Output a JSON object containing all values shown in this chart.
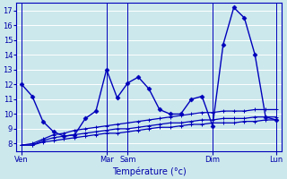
{
  "bg_color": "#cce8ec",
  "grid_color": "#ffffff",
  "line_color": "#0000bb",
  "xlabel": "Température (°c)",
  "xlabel_color": "#0000aa",
  "tick_color": "#0000aa",
  "ylim": [
    7.5,
    17.5
  ],
  "yticks": [
    8,
    9,
    10,
    11,
    12,
    13,
    14,
    15,
    16,
    17
  ],
  "n_points": 25,
  "x_day_ticks": [
    0,
    8,
    10,
    18,
    24
  ],
  "x_day_labels": [
    "Ven",
    "Mar",
    "Sam",
    "Dim",
    "Lun"
  ],
  "series_smooth_1": [
    7.9,
    7.9,
    8.1,
    8.2,
    8.3,
    8.4,
    8.5,
    8.6,
    8.7,
    8.7,
    8.8,
    8.9,
    9.0,
    9.1,
    9.1,
    9.2,
    9.3,
    9.3,
    9.4,
    9.4,
    9.4,
    9.5,
    9.5,
    9.6,
    9.6
  ],
  "series_smooth_2": [
    7.9,
    7.9,
    8.2,
    8.4,
    8.5,
    8.6,
    8.7,
    8.8,
    8.9,
    9.0,
    9.0,
    9.1,
    9.2,
    9.3,
    9.4,
    9.4,
    9.5,
    9.6,
    9.6,
    9.7,
    9.7,
    9.7,
    9.8,
    9.8,
    9.8
  ],
  "series_smooth_3": [
    7.9,
    8.0,
    8.3,
    8.6,
    8.7,
    8.9,
    9.0,
    9.1,
    9.2,
    9.3,
    9.4,
    9.5,
    9.6,
    9.7,
    9.8,
    9.9,
    10.0,
    10.1,
    10.1,
    10.2,
    10.2,
    10.2,
    10.3,
    10.3,
    10.3
  ],
  "series_spiky": [
    12.0,
    11.2,
    9.5,
    8.8,
    8.5,
    8.6,
    9.7,
    10.2,
    13.0,
    11.1,
    12.1,
    12.5,
    11.7,
    10.3,
    10.0,
    10.0,
    11.0,
    11.2,
    9.2,
    14.7,
    17.2,
    16.5,
    14.0,
    9.8,
    9.6
  ]
}
